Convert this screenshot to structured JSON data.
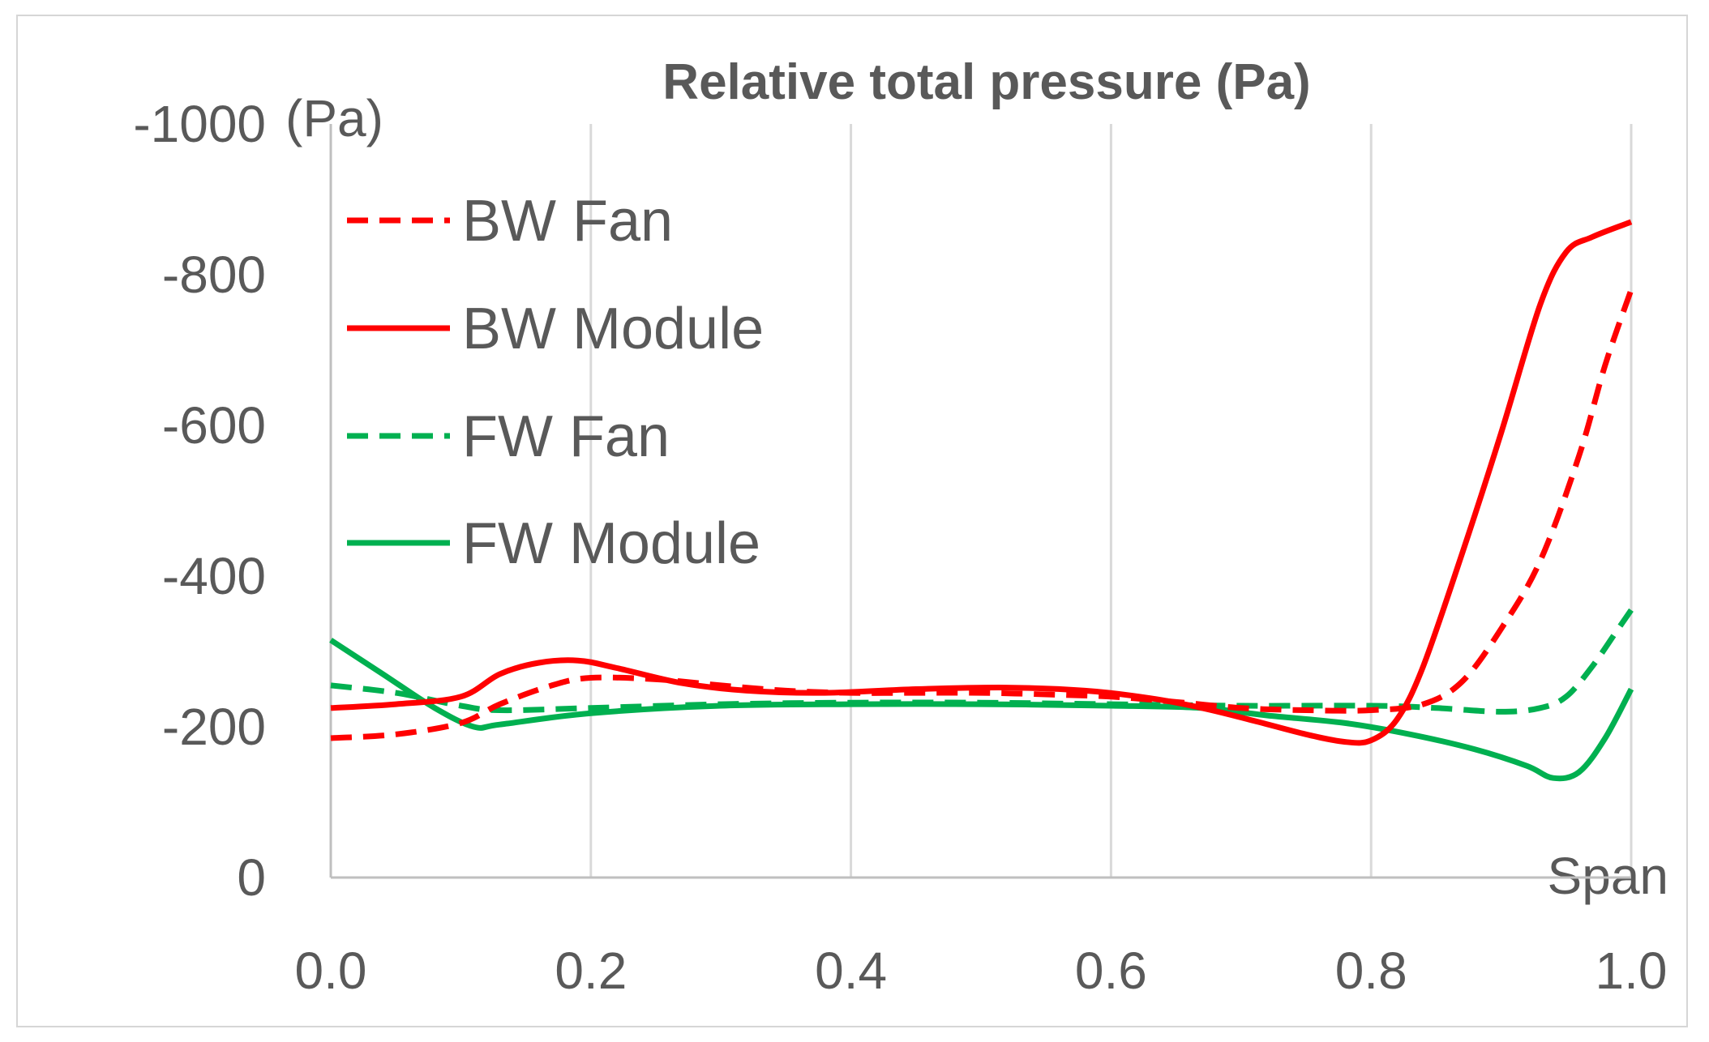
{
  "chart_data": {
    "type": "line",
    "title": "Relative total pressure (Pa)",
    "ylabel": "(Pa)",
    "xlabel": "Span",
    "xlim": [
      0.0,
      1.0
    ],
    "ylim": [
      0,
      -1000
    ],
    "x_ticks": [
      "0.0",
      "0.2",
      "0.4",
      "0.6",
      "0.8",
      "1.0"
    ],
    "y_ticks": [
      "-1000",
      "-800",
      "-600",
      "-400",
      "-200",
      "0"
    ],
    "grid": "vertical",
    "legend_position": "top-left",
    "series": [
      {
        "name": "BW Fan",
        "color": "#ff0000",
        "style": "dashed",
        "points": [
          [
            0.0,
            -185
          ],
          [
            0.05,
            -190
          ],
          [
            0.1,
            -205
          ],
          [
            0.13,
            -230
          ],
          [
            0.17,
            -255
          ],
          [
            0.2,
            -265
          ],
          [
            0.25,
            -263
          ],
          [
            0.3,
            -255
          ],
          [
            0.35,
            -248
          ],
          [
            0.4,
            -245
          ],
          [
            0.45,
            -245
          ],
          [
            0.5,
            -245
          ],
          [
            0.55,
            -243
          ],
          [
            0.6,
            -240
          ],
          [
            0.65,
            -233
          ],
          [
            0.7,
            -225
          ],
          [
            0.75,
            -222
          ],
          [
            0.8,
            -222
          ],
          [
            0.84,
            -230
          ],
          [
            0.87,
            -260
          ],
          [
            0.9,
            -330
          ],
          [
            0.93,
            -420
          ],
          [
            0.96,
            -560
          ],
          [
            0.98,
            -680
          ],
          [
            1.0,
            -780
          ]
        ]
      },
      {
        "name": "BW Module",
        "color": "#ff0000",
        "style": "solid",
        "points": [
          [
            0.0,
            -225
          ],
          [
            0.05,
            -230
          ],
          [
            0.1,
            -240
          ],
          [
            0.13,
            -270
          ],
          [
            0.16,
            -285
          ],
          [
            0.19,
            -288
          ],
          [
            0.22,
            -278
          ],
          [
            0.27,
            -258
          ],
          [
            0.32,
            -248
          ],
          [
            0.38,
            -245
          ],
          [
            0.45,
            -250
          ],
          [
            0.52,
            -252
          ],
          [
            0.58,
            -248
          ],
          [
            0.63,
            -238
          ],
          [
            0.67,
            -225
          ],
          [
            0.71,
            -208
          ],
          [
            0.75,
            -190
          ],
          [
            0.78,
            -180
          ],
          [
            0.8,
            -182
          ],
          [
            0.82,
            -210
          ],
          [
            0.84,
            -280
          ],
          [
            0.87,
            -430
          ],
          [
            0.9,
            -590
          ],
          [
            0.93,
            -760
          ],
          [
            0.95,
            -830
          ],
          [
            0.97,
            -850
          ],
          [
            1.0,
            -870
          ]
        ]
      },
      {
        "name": "FW Fan",
        "color": "#00b050",
        "style": "dashed",
        "points": [
          [
            0.0,
            -255
          ],
          [
            0.05,
            -245
          ],
          [
            0.1,
            -228
          ],
          [
            0.13,
            -222
          ],
          [
            0.2,
            -225
          ],
          [
            0.3,
            -230
          ],
          [
            0.4,
            -232
          ],
          [
            0.5,
            -232
          ],
          [
            0.6,
            -230
          ],
          [
            0.7,
            -228
          ],
          [
            0.8,
            -228
          ],
          [
            0.85,
            -225
          ],
          [
            0.9,
            -220
          ],
          [
            0.93,
            -225
          ],
          [
            0.95,
            -240
          ],
          [
            0.97,
            -280
          ],
          [
            0.99,
            -330
          ],
          [
            1.0,
            -355
          ]
        ]
      },
      {
        "name": "FW Module",
        "color": "#00b050",
        "style": "solid",
        "points": [
          [
            0.0,
            -315
          ],
          [
            0.04,
            -270
          ],
          [
            0.08,
            -225
          ],
          [
            0.11,
            -200
          ],
          [
            0.13,
            -203
          ],
          [
            0.2,
            -218
          ],
          [
            0.3,
            -228
          ],
          [
            0.4,
            -230
          ],
          [
            0.5,
            -230
          ],
          [
            0.6,
            -228
          ],
          [
            0.67,
            -225
          ],
          [
            0.72,
            -215
          ],
          [
            0.78,
            -205
          ],
          [
            0.83,
            -190
          ],
          [
            0.88,
            -170
          ],
          [
            0.92,
            -148
          ],
          [
            0.94,
            -132
          ],
          [
            0.96,
            -140
          ],
          [
            0.98,
            -185
          ],
          [
            1.0,
            -250
          ]
        ]
      }
    ]
  }
}
